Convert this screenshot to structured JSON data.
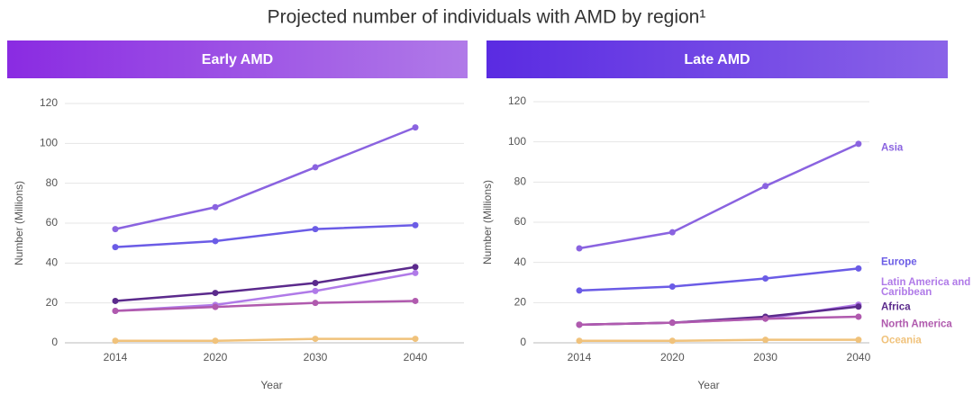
{
  "title": "Projected number of individuals with AMD by region¹",
  "chart_data": [
    {
      "type": "line",
      "title": "Early AMD",
      "x_label": "Year",
      "y_label": "Number (Millions)",
      "categories": [
        "2014",
        "2020",
        "2030",
        "2040"
      ],
      "ylim": [
        0,
        120
      ],
      "yticks": [
        0,
        20,
        40,
        60,
        80,
        100,
        120
      ],
      "grid": true,
      "series": [
        {
          "color": "#8a63e0",
          "values": [
            57,
            68,
            88,
            108
          ]
        },
        {
          "color": "#6b5ce6",
          "values": [
            48,
            51,
            57,
            59
          ]
        },
        {
          "color": "#5b2a8c",
          "values": [
            21,
            25,
            30,
            38
          ]
        },
        {
          "color": "#b07ae8",
          "values": [
            16,
            19,
            26,
            35
          ]
        },
        {
          "color": "#b05aae",
          "values": [
            16,
            18,
            20,
            21
          ]
        },
        {
          "color": "#f0c27b",
          "values": [
            1,
            1,
            2,
            2
          ]
        }
      ]
    },
    {
      "type": "line",
      "title": "Late AMD",
      "x_label": "Year",
      "y_label": "Number (Millions)",
      "categories": [
        "2014",
        "2020",
        "2030",
        "2040"
      ],
      "ylim": [
        0,
        120
      ],
      "yticks": [
        0,
        20,
        40,
        60,
        80,
        100,
        120
      ],
      "grid": true,
      "series": [
        {
          "name": "Asia",
          "color": "#8a63e0",
          "values": [
            47,
            55,
            78,
            99
          ]
        },
        {
          "name": "Europe",
          "color": "#6b5ce6",
          "values": [
            26,
            28,
            32,
            37
          ]
        },
        {
          "name": "Latin America and Caribbean",
          "color": "#b07ae8",
          "values": [
            9,
            10,
            12,
            19
          ]
        },
        {
          "name": "Africa",
          "color": "#5b2a8c",
          "values": [
            9,
            10,
            13,
            18
          ]
        },
        {
          "name": "North America",
          "color": "#b05aae",
          "values": [
            9,
            10,
            12,
            13
          ]
        },
        {
          "name": "Oceania",
          "color": "#f0c27b",
          "values": [
            1,
            1,
            1.5,
            1.5
          ]
        }
      ]
    }
  ]
}
